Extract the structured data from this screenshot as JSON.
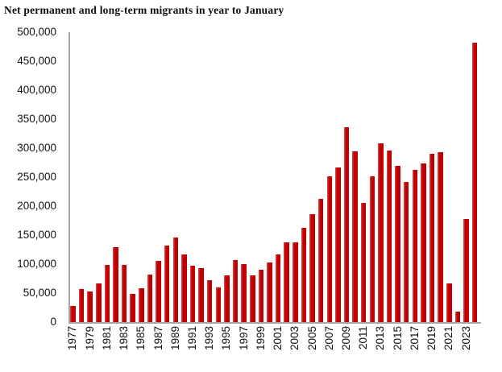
{
  "chart_data": {
    "type": "bar",
    "title": "Net permanent and long-term migrants in year to January",
    "xlabel": "",
    "ylabel": "",
    "x": [
      1977,
      1978,
      1979,
      1980,
      1981,
      1982,
      1983,
      1984,
      1985,
      1986,
      1987,
      1988,
      1989,
      1990,
      1991,
      1992,
      1993,
      1994,
      1995,
      1996,
      1997,
      1998,
      1999,
      2000,
      2001,
      2002,
      2003,
      2004,
      2005,
      2006,
      2007,
      2008,
      2009,
      2010,
      2011,
      2012,
      2013,
      2014,
      2015,
      2016,
      2017,
      2018,
      2019,
      2020,
      2021,
      2022,
      2023,
      2024
    ],
    "values": [
      28000,
      57000,
      53000,
      66000,
      98000,
      129000,
      98000,
      49000,
      58000,
      82000,
      105000,
      132000,
      146000,
      116000,
      97000,
      93000,
      72000,
      60000,
      80000,
      107000,
      100000,
      81000,
      90000,
      103000,
      117000,
      137000,
      138000,
      163000,
      186000,
      212000,
      251000,
      266000,
      336000,
      295000,
      206000,
      251000,
      309000,
      296000,
      269000,
      241000,
      262000,
      273000,
      290000,
      293000,
      67000,
      18000,
      178000,
      482000
    ],
    "x_tick_labels": [
      "1977",
      "1979",
      "1981",
      "1983",
      "1985",
      "1987",
      "1989",
      "1991",
      "1993",
      "1995",
      "1997",
      "1999",
      "2001",
      "2003",
      "2005",
      "2007",
      "2009",
      "2011",
      "2013",
      "2015",
      "2017",
      "2019",
      "2021",
      "2023"
    ],
    "x_tick_every": 2,
    "y_ticks": [
      0,
      50000,
      100000,
      150000,
      200000,
      250000,
      300000,
      350000,
      400000,
      450000,
      500000
    ],
    "y_tick_labels": [
      "0",
      "50,000",
      "100,000",
      "150,000",
      "200,000",
      "250,000",
      "300,000",
      "350,000",
      "400,000",
      "450,000",
      "500,000"
    ],
    "ylim": [
      0,
      500000
    ],
    "grid": false,
    "legend": false,
    "bar_color": "#c00000",
    "axis_color": "#a6a6a6",
    "label_color": "#111111"
  }
}
